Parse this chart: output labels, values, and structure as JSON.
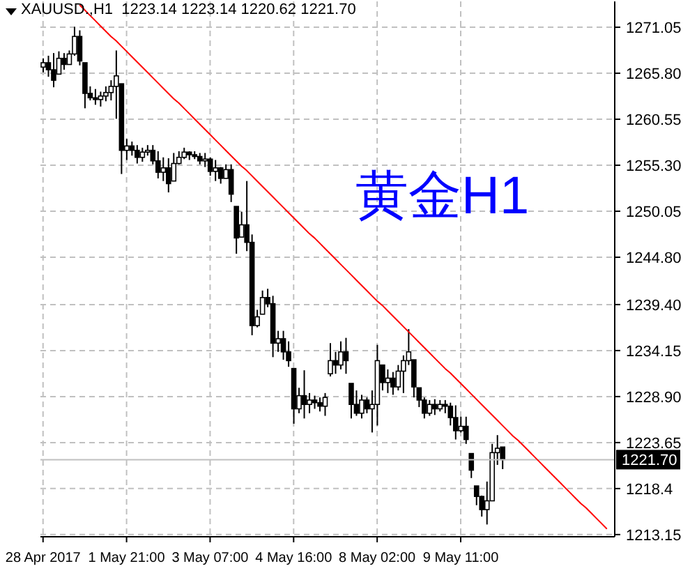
{
  "chart_data": {
    "type": "candlestick",
    "title": "XAUUSD.,H1  1223.14 1223.14 1220.62 1221.70",
    "annotations": [
      "黄金H1"
    ],
    "color": "#000000",
    "categories": [
      "28 Apr 2017",
      null,
      null,
      null,
      null,
      null,
      null,
      null,
      null,
      null,
      null,
      null,
      null,
      null,
      null,
      null,
      "1 May 21:00",
      null,
      null,
      null,
      null,
      null,
      null,
      null,
      null,
      null,
      null,
      null,
      null,
      null,
      null,
      null,
      "3 May 07:00",
      null,
      null,
      null,
      null,
      null,
      null,
      null,
      null,
      null,
      null,
      null,
      null,
      null,
      null,
      null,
      "4 May 16:00",
      null,
      null,
      null,
      null,
      null,
      null,
      null,
      null,
      null,
      null,
      null,
      null,
      null,
      null,
      null,
      "8 May 02:00",
      null,
      null,
      null,
      null,
      null,
      null,
      null,
      null,
      null,
      null,
      null,
      null,
      null,
      null,
      null,
      "9 May 11:00",
      null,
      null,
      null,
      null,
      null,
      null,
      null,
      null,
      null,
      null,
      null,
      null,
      null,
      null,
      null,
      null,
      null,
      null,
      null,
      null,
      null,
      null,
      null,
      null,
      null,
      null,
      null,
      null,
      null
    ],
    "ohlc": [
      [
        1266.5,
        1267.5,
        1265.9,
        1267.0
      ],
      [
        1267.0,
        1267.8,
        1265.4,
        1266.2
      ],
      [
        1266.2,
        1268.1,
        1264.2,
        1265.0
      ],
      [
        1265.7,
        1268.3,
        1265.7,
        1267.5
      ],
      [
        1267.5,
        1268.1,
        1266.2,
        1266.8
      ],
      [
        1266.8,
        1268.4,
        1266.8,
        1268.0
      ],
      [
        1268.0,
        1271.1,
        1267.8,
        1270.0
      ],
      [
        1270.0,
        1270.7,
        1266.7,
        1267.2
      ],
      [
        1267.0,
        1267.0,
        1261.8,
        1263.5
      ],
      [
        1263.5,
        1264.3,
        1262.7,
        1263.0
      ],
      [
        1263.0,
        1264.0,
        1262.2,
        1262.8
      ],
      [
        1262.8,
        1263.7,
        1262.0,
        1263.2
      ],
      [
        1263.2,
        1264.3,
        1262.6,
        1263.6
      ],
      [
        1263.6,
        1265.0,
        1262.7,
        1264.3
      ],
      [
        1264.3,
        1268.4,
        1260.6,
        1265.5
      ],
      [
        1264.6,
        1264.6,
        1254.3,
        1257.0
      ],
      [
        1257.0,
        1258.3,
        1255.9,
        1257.5
      ],
      [
        1257.5,
        1258.0,
        1256.4,
        1257.0
      ],
      [
        1257.0,
        1257.6,
        1255.5,
        1256.2
      ],
      [
        1256.2,
        1257.3,
        1255.7,
        1256.8
      ],
      [
        1256.8,
        1257.6,
        1256.4,
        1257.0
      ],
      [
        1257.0,
        1257.6,
        1255.4,
        1255.8
      ],
      [
        1255.8,
        1256.9,
        1253.8,
        1254.5
      ],
      [
        1254.5,
        1256.2,
        1253.5,
        1255.0
      ],
      [
        1255.0,
        1256.1,
        1252.2,
        1253.2
      ],
      [
        1253.5,
        1256.7,
        1253.5,
        1255.5
      ],
      [
        1255.5,
        1256.9,
        1255.4,
        1256.2
      ],
      [
        1256.2,
        1257.3,
        1256.0,
        1256.8
      ],
      [
        1256.8,
        1256.9,
        1255.9,
        1256.5
      ],
      [
        1256.5,
        1256.9,
        1256.0,
        1256.3
      ],
      [
        1256.3,
        1256.7,
        1255.4,
        1255.8
      ],
      [
        1255.8,
        1256.7,
        1255.1,
        1256.0
      ],
      [
        1256.0,
        1256.2,
        1254.1,
        1254.6
      ],
      [
        1254.6,
        1255.9,
        1253.5,
        1255.0
      ],
      [
        1255.0,
        1255.1,
        1253.2,
        1253.8
      ],
      [
        1253.8,
        1255.4,
        1253.8,
        1254.8
      ],
      [
        1254.8,
        1255.4,
        1251.1,
        1252.0
      ],
      [
        1250.6,
        1250.6,
        1245.2,
        1247.0
      ],
      [
        1247.1,
        1250.0,
        1247.1,
        1248.5
      ],
      [
        1248.5,
        1253.5,
        1245.5,
        1246.5
      ],
      [
        1246.5,
        1247.4,
        1235.9,
        1237.0
      ],
      [
        1237.0,
        1238.8,
        1236.8,
        1238.0
      ],
      [
        1238.3,
        1241.0,
        1238.3,
        1240.2
      ],
      [
        1240.2,
        1241.2,
        1239.1,
        1239.5
      ],
      [
        1239.5,
        1240.4,
        1233.4,
        1235.0
      ],
      [
        1235.0,
        1236.4,
        1234.0,
        1235.5
      ],
      [
        1235.5,
        1236.4,
        1233.1,
        1234.0
      ],
      [
        1234.0,
        1235.2,
        1232.3,
        1233.0
      ],
      [
        1232.1,
        1232.1,
        1225.8,
        1227.5
      ],
      [
        1227.5,
        1229.9,
        1227.0,
        1229.0
      ],
      [
        1229.0,
        1231.9,
        1226.4,
        1228.0
      ],
      [
        1228.0,
        1229.3,
        1227.0,
        1228.5
      ],
      [
        1228.5,
        1229.0,
        1227.5,
        1228.2
      ],
      [
        1228.2,
        1228.8,
        1227.2,
        1227.8
      ],
      [
        1227.8,
        1229.3,
        1226.7,
        1228.8
      ],
      [
        1231.5,
        1235.0,
        1231.2,
        1233.0
      ],
      [
        1233.0,
        1234.0,
        1231.5,
        1232.5
      ],
      [
        1232.5,
        1235.2,
        1232.0,
        1234.0
      ],
      [
        1234.0,
        1235.6,
        1231.5,
        1233.0
      ],
      [
        1230.4,
        1230.4,
        1226.4,
        1228.0
      ],
      [
        1228.0,
        1229.6,
        1226.7,
        1227.0
      ],
      [
        1227.0,
        1229.1,
        1226.4,
        1228.5
      ],
      [
        1228.5,
        1228.8,
        1227.0,
        1227.5
      ],
      [
        1227.5,
        1229.6,
        1224.8,
        1228.0
      ],
      [
        1228.0,
        1234.8,
        1225.6,
        1233.0
      ],
      [
        1232.5,
        1232.5,
        1229.6,
        1230.5
      ],
      [
        1230.5,
        1232.0,
        1229.3,
        1231.0
      ],
      [
        1231.0,
        1231.7,
        1229.1,
        1230.0
      ],
      [
        1230.0,
        1232.5,
        1229.6,
        1231.8
      ],
      [
        1231.8,
        1233.6,
        1229.3,
        1233.0
      ],
      [
        1233.0,
        1236.6,
        1232.5,
        1234.0
      ],
      [
        1233.1,
        1233.1,
        1228.8,
        1230.0
      ],
      [
        1229.9,
        1229.9,
        1227.7,
        1228.5
      ],
      [
        1228.5,
        1228.8,
        1226.4,
        1227.0
      ],
      [
        1227.0,
        1228.5,
        1226.7,
        1228.0
      ],
      [
        1228.0,
        1228.6,
        1226.8,
        1227.5
      ],
      [
        1227.5,
        1228.5,
        1227.2,
        1228.0
      ],
      [
        1228.0,
        1228.5,
        1227.0,
        1227.8
      ],
      [
        1227.8,
        1228.2,
        1225.6,
        1226.5
      ],
      [
        1226.5,
        1227.9,
        1224.0,
        1225.0
      ],
      [
        1225.0,
        1226.6,
        1224.8,
        1225.5
      ],
      [
        1225.5,
        1226.6,
        1223.5,
        1224.0
      ],
      [
        1222.4,
        1222.4,
        1219.6,
        1220.5
      ],
      [
        1218.7,
        1218.7,
        1216.5,
        1217.5
      ],
      [
        1217.5,
        1217.6,
        1215.2,
        1216.0
      ],
      [
        1216.0,
        1219.2,
        1214.3,
        1217.0
      ],
      [
        1217.0,
        1223.5,
        1217.0,
        1222.5
      ],
      [
        1222.5,
        1224.5,
        1221.1,
        1223.0
      ],
      [
        1223.14,
        1223.14,
        1220.62,
        1221.7
      ],
      null,
      null,
      null,
      null,
      null,
      null,
      null,
      null,
      null,
      null,
      null,
      null,
      null,
      null,
      null,
      null,
      null,
      null,
      null,
      null,
      null
    ],
    "series": [
      {
        "type": "line",
        "color": "#ff0000",
        "values": [
          null,
          null,
          null,
          null,
          null,
          null,
          null,
          1273.6,
          1273.0,
          1272.4,
          1271.8,
          1271.2,
          1270.6,
          1270.0,
          1269.5,
          1268.9,
          1268.3,
          1267.7,
          1267.1,
          1266.5,
          1265.9,
          1265.3,
          1264.7,
          1264.1,
          1263.5,
          1262.9,
          1262.4,
          1261.8,
          1261.2,
          1260.6,
          1260.0,
          1259.4,
          1258.8,
          1258.2,
          1257.6,
          1257.0,
          1256.4,
          1255.8,
          1255.2,
          1254.7,
          1254.1,
          1253.5,
          1252.9,
          1252.3,
          1251.7,
          1251.1,
          1250.5,
          1249.9,
          1249.3,
          1248.7,
          1248.1,
          1247.5,
          1247.0,
          1246.4,
          1245.8,
          1245.2,
          1244.6,
          1244.0,
          1243.4,
          1242.8,
          1242.2,
          1241.6,
          1241.0,
          1240.4,
          1239.8,
          1239.3,
          1238.7,
          1238.1,
          1237.5,
          1236.9,
          1236.3,
          1235.7,
          1235.1,
          1234.5,
          1233.9,
          1233.3,
          1232.7,
          1232.1,
          1231.6,
          1231.0,
          1230.4,
          1229.8,
          1229.2,
          1228.6,
          1228.0,
          1227.4,
          1226.8,
          1226.2,
          1225.6,
          1225.0,
          1224.4,
          1223.9,
          1223.3,
          1222.7,
          1222.1,
          1221.5,
          1220.9,
          1220.3,
          1219.7,
          1219.1,
          1218.5,
          1217.9,
          1217.3,
          1216.7,
          1216.2,
          1215.6,
          1215.0,
          1214.4,
          1213.8,
          null
        ]
      }
    ],
    "ylim": [
      1212.9,
      1274.0
    ],
    "yticks": [
      1213.15,
      1218.4,
      1223.65,
      {
        "value": 1228.9,
        "label": "1228.90"
      },
      1234.15,
      {
        "value": 1239.4,
        "label": "1239.40"
      },
      {
        "value": 1244.8,
        "label": "1244.80"
      },
      1250.05,
      {
        "value": 1255.3,
        "label": "1255.30"
      },
      1260.55,
      {
        "value": 1265.8,
        "label": "1265.80"
      },
      1271.05
    ],
    "ref_lines": [
      {
        "axis": "y",
        "value": 1221.7,
        "label": "1221.70",
        "color": "#c0c0c0"
      }
    ],
    "grid": true,
    "legend": false
  }
}
